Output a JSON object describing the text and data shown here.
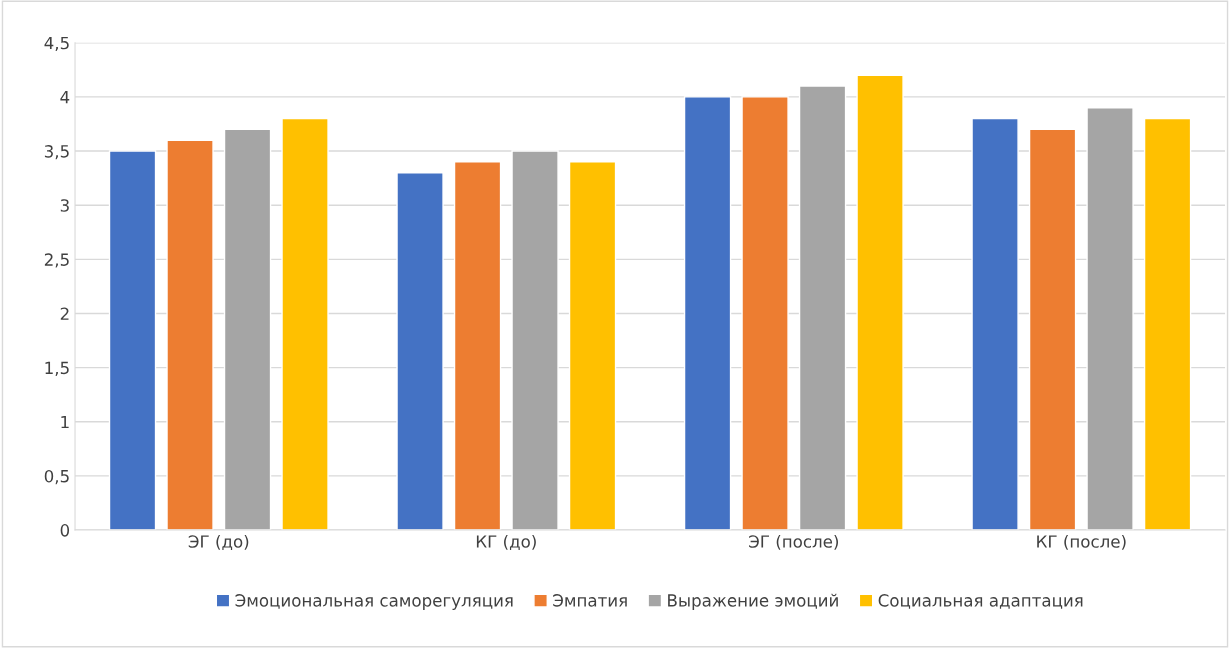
{
  "chart_data": {
    "type": "bar",
    "categories": [
      "ЭГ (до)",
      "КГ (до)",
      "ЭГ (после)",
      "КГ (после)"
    ],
    "series": [
      {
        "name": "Эмоциональная саморегуляция",
        "color": "#4472c4",
        "values": [
          3.5,
          3.3,
          4.0,
          3.8
        ]
      },
      {
        "name": "Эмпатия",
        "color": "#ed7d31",
        "values": [
          3.6,
          3.4,
          4.0,
          3.7
        ]
      },
      {
        "name": "Выражение эмоций",
        "color": "#a5a5a5",
        "values": [
          3.7,
          3.5,
          4.1,
          3.9
        ]
      },
      {
        "name": "Социальная адаптация",
        "color": "#ffc000",
        "values": [
          3.8,
          3.4,
          4.2,
          3.8
        ]
      }
    ],
    "ylim": [
      0,
      4.5
    ],
    "yticks": [
      0,
      {
        "value": 0.5,
        "label": "0,5"
      },
      1,
      {
        "value": 1.5,
        "label": "1,5"
      },
      2,
      {
        "value": 2.5,
        "label": "2,5"
      },
      3,
      {
        "value": 3.5,
        "label": "3,5"
      },
      4,
      {
        "value": 4.5,
        "label": "4,5"
      }
    ],
    "grid": "y",
    "legend": "bottom"
  }
}
